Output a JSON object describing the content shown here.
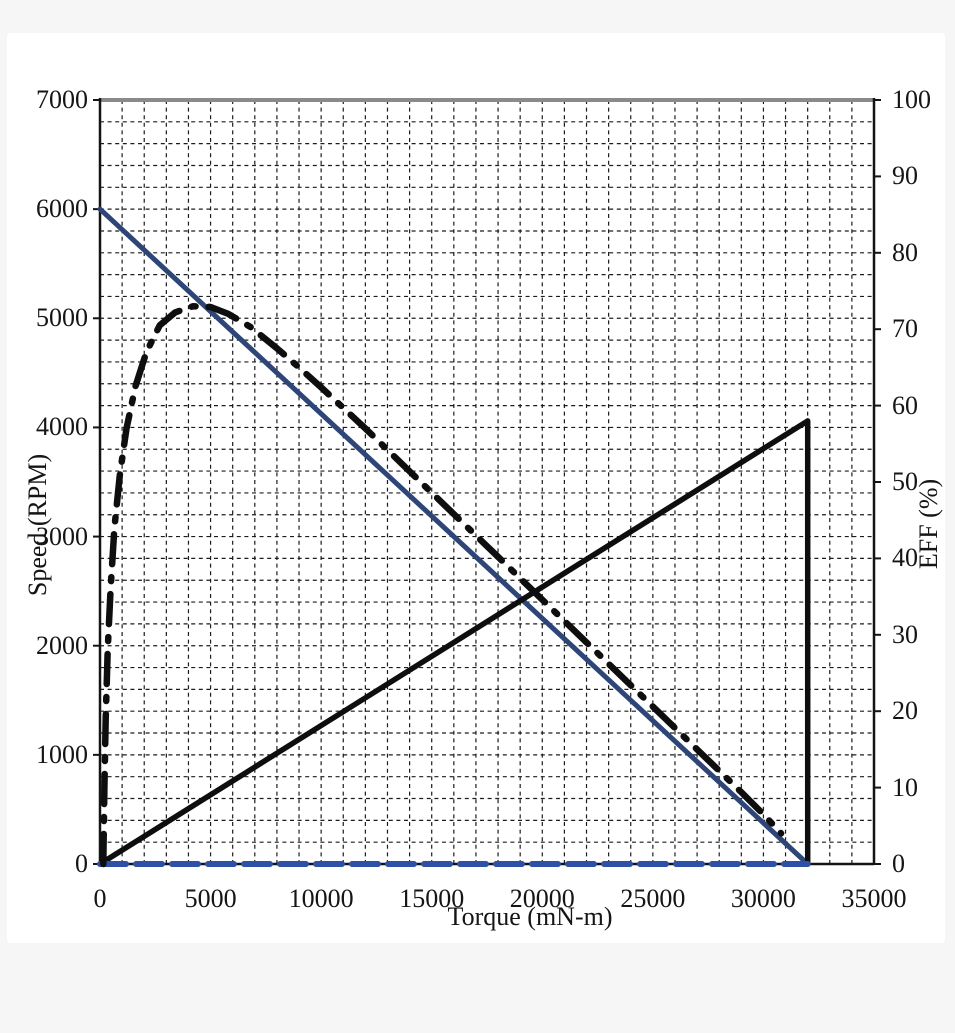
{
  "page": {
    "background": "#f6f6f6",
    "card_background": "#ffffff"
  },
  "chart_data": {
    "type": "line",
    "title": "",
    "xlabel": "Torque (mN-m)",
    "ylabel_left": "Speed (RPM)",
    "ylabel_right": "EFF (%)",
    "legend": "none",
    "grid": {
      "show": true,
      "style": "dashed",
      "color": "#1c1c1c"
    },
    "frame_color": "#141414",
    "frame_top_color": "#8a8a8a",
    "x_axis": {
      "min": 0,
      "max": 35000,
      "minor_step": 1000,
      "major_ticks": [
        0,
        5000,
        10000,
        15000,
        20000,
        25000,
        30000,
        35000
      ]
    },
    "y_left_axis": {
      "min": 0,
      "max": 7000,
      "minor_step": 200,
      "major_ticks": [
        0,
        1000,
        2000,
        3000,
        4000,
        5000,
        6000,
        7000
      ]
    },
    "y_right_axis": {
      "min": 0,
      "max": 100,
      "major_ticks": [
        0,
        10,
        20,
        30,
        40,
        50,
        60,
        70,
        80,
        90,
        100
      ]
    },
    "series": [
      {
        "name": "speed-torque-line",
        "axis": "left",
        "line_style": "solid",
        "color": "#2e4578",
        "width": 5,
        "points": [
          [
            0,
            6000
          ],
          [
            32000,
            0
          ]
        ]
      },
      {
        "name": "load-rise-line",
        "axis": "right",
        "line_style": "solid",
        "color": "#0e0e0e",
        "width": 5.5,
        "points": [
          [
            0,
            0
          ],
          [
            32000,
            58
          ],
          [
            32000,
            0
          ]
        ]
      },
      {
        "name": "zero-speed-baseline",
        "axis": "left",
        "line_style": "dashed",
        "color": "#2d51a6",
        "width": 6,
        "points": [
          [
            0,
            0
          ],
          [
            32000,
            0
          ]
        ]
      },
      {
        "name": "efficiency-curve",
        "axis": "right",
        "line_style": "dash-dot",
        "color": "#0e0e0e",
        "width": 6.5,
        "points": [
          [
            150,
            0
          ],
          [
            200,
            10
          ],
          [
            260,
            19
          ],
          [
            350,
            28
          ],
          [
            480,
            36
          ],
          [
            650,
            44
          ],
          [
            900,
            51
          ],
          [
            1200,
            57
          ],
          [
            1600,
            62.5
          ],
          [
            2100,
            67
          ],
          [
            2700,
            70.5
          ],
          [
            3400,
            72.2
          ],
          [
            4200,
            73
          ],
          [
            5000,
            72.9
          ],
          [
            5800,
            72
          ],
          [
            6800,
            70.3
          ],
          [
            8000,
            67.5
          ],
          [
            9000,
            65
          ],
          [
            10000,
            62.4
          ],
          [
            11000,
            59.7
          ],
          [
            12000,
            57
          ],
          [
            13000,
            54.2
          ],
          [
            14000,
            51.4
          ],
          [
            15000,
            48.6
          ],
          [
            16000,
            45.8
          ],
          [
            17000,
            43
          ],
          [
            18000,
            40.2
          ],
          [
            19000,
            37.4
          ],
          [
            20000,
            34.6
          ],
          [
            21000,
            31.8
          ],
          [
            22000,
            29
          ],
          [
            23000,
            26.2
          ],
          [
            24000,
            23.4
          ],
          [
            25000,
            20.6
          ],
          [
            26000,
            17.8
          ],
          [
            27000,
            15
          ],
          [
            28000,
            12.2
          ],
          [
            29000,
            9.4
          ],
          [
            30000,
            6.5
          ],
          [
            30800,
            4
          ]
        ]
      }
    ]
  }
}
